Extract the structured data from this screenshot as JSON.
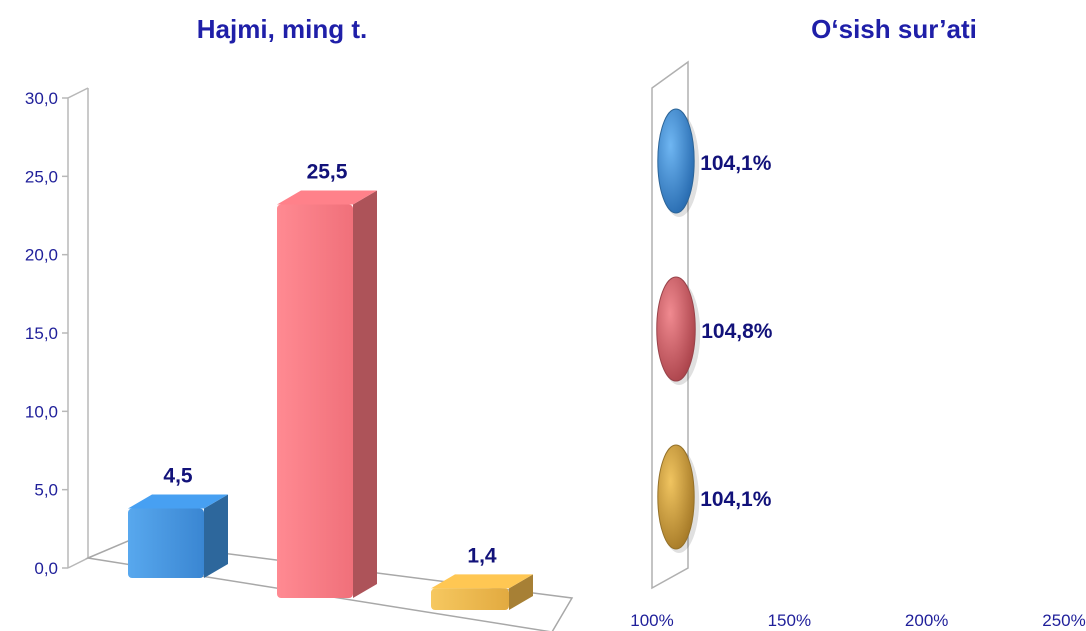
{
  "chart_data": [
    {
      "type": "bar",
      "title": "Hajmi, ming t.",
      "xlabel": "",
      "ylabel": "",
      "categories": [
        "",
        "",
        ""
      ],
      "values": [
        4.5,
        25.5,
        1.4
      ],
      "value_labels": [
        "4,5",
        "25,5",
        "1,4"
      ],
      "ylim": [
        0,
        30
      ],
      "y_ticks": [
        "0,0",
        "5,0",
        "10,0",
        "15,0",
        "20,0",
        "25,0",
        "30,0"
      ],
      "colors": [
        "#3f8fd8",
        "#f0737b",
        "#e8b24a"
      ],
      "grid": false,
      "legend": "none"
    },
    {
      "type": "bar",
      "orientation": "horizontal",
      "title": "O‘sish sur’ati",
      "xlabel": "",
      "ylabel": "",
      "categories": [
        "",
        "",
        ""
      ],
      "values": [
        104.1,
        104.8,
        104.1
      ],
      "value_labels": [
        "104,1%",
        "104,8%",
        "104,1%"
      ],
      "xlim": [
        100,
        250
      ],
      "x_ticks": [
        "100%",
        "150%",
        "200%",
        "250%"
      ],
      "colors": [
        "#3f8fd8",
        "#d9606a",
        "#d4a23c"
      ],
      "grid": false,
      "legend": "none"
    }
  ]
}
